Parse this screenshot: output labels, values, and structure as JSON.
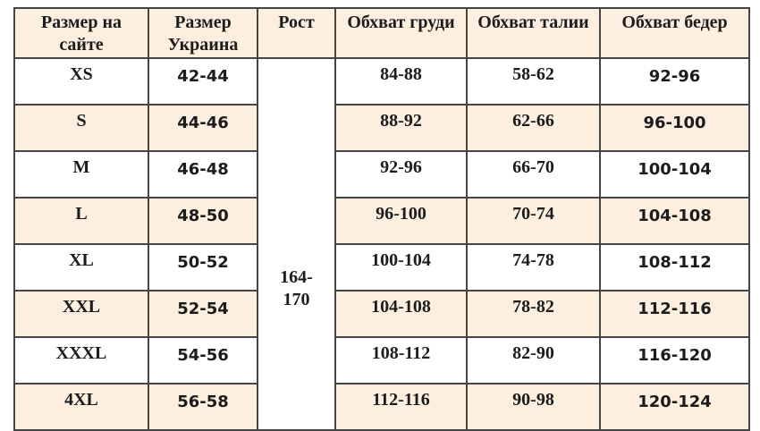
{
  "table": {
    "columns": [
      {
        "key": "site",
        "label": "Размер на сайте"
      },
      {
        "key": "ua",
        "label": "Размер Украина"
      },
      {
        "key": "height",
        "label": "Рост"
      },
      {
        "key": "chest",
        "label": "Обхват груди"
      },
      {
        "key": "waist",
        "label": "Обхват талии"
      },
      {
        "key": "hips",
        "label": "Обхват бедер"
      }
    ],
    "height_range": {
      "line1": "164-",
      "line2": "170"
    },
    "rows": [
      {
        "site": "XS",
        "ua": "42-44",
        "chest": "84-88",
        "waist": "58-62",
        "hips": "92-96"
      },
      {
        "site": "S",
        "ua": "44-46",
        "chest": "88-92",
        "waist": "62-66",
        "hips": "96-100"
      },
      {
        "site": "M",
        "ua": "46-48",
        "chest": "92-96",
        "waist": "66-70",
        "hips": "100-104"
      },
      {
        "site": "L",
        "ua": "48-50",
        "chest": "96-100",
        "waist": "70-74",
        "hips": "104-108"
      },
      {
        "site": "XL",
        "ua": "50-52",
        "chest": "100-104",
        "waist": "74-78",
        "hips": "108-112"
      },
      {
        "site": "XXL",
        "ua": "52-54",
        "chest": "104-108",
        "waist": "78-82",
        "hips": "112-116"
      },
      {
        "site": "XXXL",
        "ua": "54-56",
        "chest": "108-112",
        "waist": "82-90",
        "hips": "116-120"
      },
      {
        "site": "4XL",
        "ua": "56-58",
        "chest": "112-116",
        "waist": "90-98",
        "hips": "120-124"
      }
    ]
  },
  "colors": {
    "header_bg": "#fcefdf",
    "row_alt_bg": "#fcefdf",
    "row_bg": "#ffffff",
    "border": "#454545",
    "text": "#1c1c1c"
  }
}
